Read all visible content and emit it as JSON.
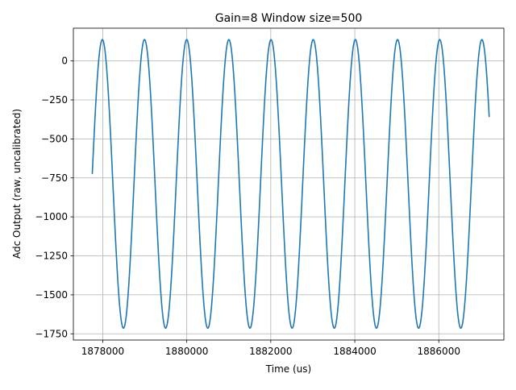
{
  "chart_data": {
    "type": "line",
    "title": "Gain=8 Window size=500",
    "xlabel": "Time (us)",
    "ylabel": "Adc Output (raw, uncalibrated)",
    "xlim": [
      1877300,
      1887550
    ],
    "ylim": [
      -1790,
      210
    ],
    "grid": true,
    "xticks": [
      1878000,
      1880000,
      1882000,
      1884000,
      1886000
    ],
    "xtick_labels": [
      "1878000",
      "1880000",
      "1882000",
      "1884000",
      "1886000"
    ],
    "yticks": [
      0,
      -250,
      -500,
      -750,
      -1000,
      -1250,
      -1500,
      -1750
    ],
    "ytick_labels": [
      "0",
      "−250",
      "−500",
      "−750",
      "−1000",
      "−1250",
      "−1500",
      "−1750"
    ],
    "series": [
      {
        "color": "#1f77b4",
        "signal": {
          "kind": "sine",
          "x_start": 1877750,
          "x_end": 1887200,
          "peak_x": 1877990,
          "period": 1004,
          "max": 137,
          "min": -1714,
          "start_value": -945,
          "end_value": -345
        }
      }
    ]
  }
}
